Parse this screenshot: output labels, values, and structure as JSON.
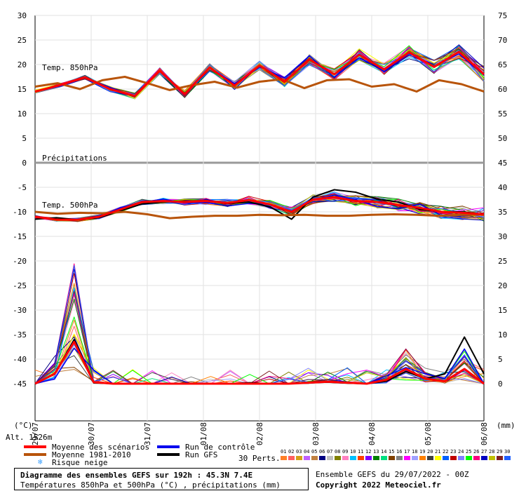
{
  "chart_data": {
    "type": "line",
    "title": "Diagramme des ensembles GEFS sur 192h : 45.3N 7.4E",
    "subtitle": "Températures 850hPa et 500hPa (°C) , précipitations (mm)",
    "left_unit": "(°C)",
    "right_unit": "(mm)",
    "altitude_label": "Alt. 1526m",
    "left_ticks": [
      30,
      25,
      20,
      15,
      10,
      5,
      0,
      -5,
      -10,
      -15,
      -20,
      -25,
      -30,
      -35,
      -40,
      -45
    ],
    "right_ticks": [
      75,
      70,
      65,
      60,
      55,
      50,
      45,
      40,
      35,
      30,
      25,
      20,
      15,
      10,
      5,
      0
    ],
    "ylim": [
      -45,
      30
    ],
    "x_labels": [
      "29/07",
      "30/07",
      "31/07",
      "01/08",
      "02/08",
      "03/08",
      "04/08",
      "05/08",
      "06/08"
    ],
    "annotations": {
      "t850": "Temp. 850hPa",
      "precip": "Précipitations",
      "t500": "Temp. 500hPa"
    },
    "grid": true,
    "series": [
      {
        "name": "Moyenne des scénarios",
        "color": "#ff0000",
        "t850": [
          14.5,
          15.8,
          17.4,
          15.0,
          13.6,
          18.7,
          14.0,
          19.4,
          15.7,
          19.8,
          16.5,
          21.0,
          18.0,
          22.0,
          19.0,
          22.5,
          19.5,
          22.6,
          18.0
        ],
        "t500": [
          -11.0,
          -11.6,
          -11.6,
          -11.0,
          -9.5,
          -8.0,
          -7.8,
          -8.0,
          -7.8,
          -8.2,
          -7.6,
          -8.5,
          -10.0,
          -7.5,
          -7.0,
          -7.8,
          -8.0,
          -8.6,
          -9.2,
          -10.0,
          -10.2,
          -10.5
        ],
        "precip": [
          0,
          2,
          8.5,
          0.3,
          0,
          0,
          0,
          0,
          0,
          0,
          0,
          0,
          0,
          0,
          0.2,
          0.4,
          0.2,
          0,
          0.8,
          3.0,
          1.0,
          0.5,
          3.0,
          0
        ]
      },
      {
        "name": "Moyenne 1981-2010",
        "color": "#b8540a",
        "t850": [
          15.5,
          16.2,
          15.0,
          16.8,
          17.5,
          16.2,
          14.8,
          15.8,
          16.5,
          15.3,
          16.5,
          17.0,
          15.2,
          16.8,
          17.0,
          15.5,
          16.0,
          14.5,
          16.8,
          16.0,
          14.5
        ],
        "t500": [
          -10.0,
          -10.4,
          -10.2,
          -10.3,
          -10.0,
          -10.5,
          -11.3,
          -11.0,
          -10.8,
          -10.8,
          -10.6,
          -10.7,
          -10.6,
          -10.8,
          -10.8,
          -10.6,
          -10.5,
          -10.6,
          -10.8,
          -10.6,
          -10.6
        ]
      },
      {
        "name": "Run de contrôle",
        "color": "#0000ee"
      },
      {
        "name": "Run GFS",
        "color": "#000000",
        "t500": [
          -11.5,
          -11.2,
          -11.6,
          -11.2,
          -9.8,
          -8.4,
          -8.0,
          -7.8,
          -7.8,
          -8.3,
          -8.0,
          -9.0,
          -11.5,
          -7.0,
          -5.5,
          -6.0,
          -7.4,
          -8.0,
          -9.5,
          -10.0,
          -10.0,
          -10.5
        ],
        "precip": [
          0,
          2,
          9.0,
          0.2,
          0,
          0,
          0,
          0,
          0,
          0,
          0,
          0.2,
          0,
          0,
          0.2,
          0.3,
          0.1,
          0,
          0.5,
          2.5,
          1.0,
          2.0,
          9.5,
          2.0
        ]
      }
    ],
    "extra_legend": "Risque neige",
    "perturbations_label": "30 Perts.",
    "perturbation_ids": [
      "01",
      "02",
      "03",
      "04",
      "05",
      "06",
      "07",
      "08",
      "09",
      "10",
      "11",
      "12",
      "13",
      "14",
      "15",
      "16",
      "17",
      "18",
      "19",
      "20",
      "21",
      "22",
      "23",
      "24",
      "25",
      "26",
      "27",
      "28",
      "29",
      "30"
    ],
    "perturbation_colors": [
      "#ff7f27",
      "#ff6060",
      "#d4a017",
      "#c060ff",
      "#c08040",
      "#000080",
      "#c0c0c0",
      "#808000",
      "#ff80c0",
      "#00c0ff",
      "#ff4000",
      "#8000ff",
      "#008000",
      "#00e080",
      "#804000",
      "#808080",
      "#ff00ff",
      "#a0a0ff",
      "#ff8000",
      "#404040",
      "#ffff00",
      "#0060ff",
      "#c00000",
      "#8080ff",
      "#00ff00",
      "#ff0080",
      "#0000c0",
      "#c0c000",
      "#802020",
      "#2060ff"
    ],
    "run_info": "Ensemble GEFS du 29/07/2022 - 00Z",
    "copyright": "Copyright 2022 Meteociel.fr"
  }
}
